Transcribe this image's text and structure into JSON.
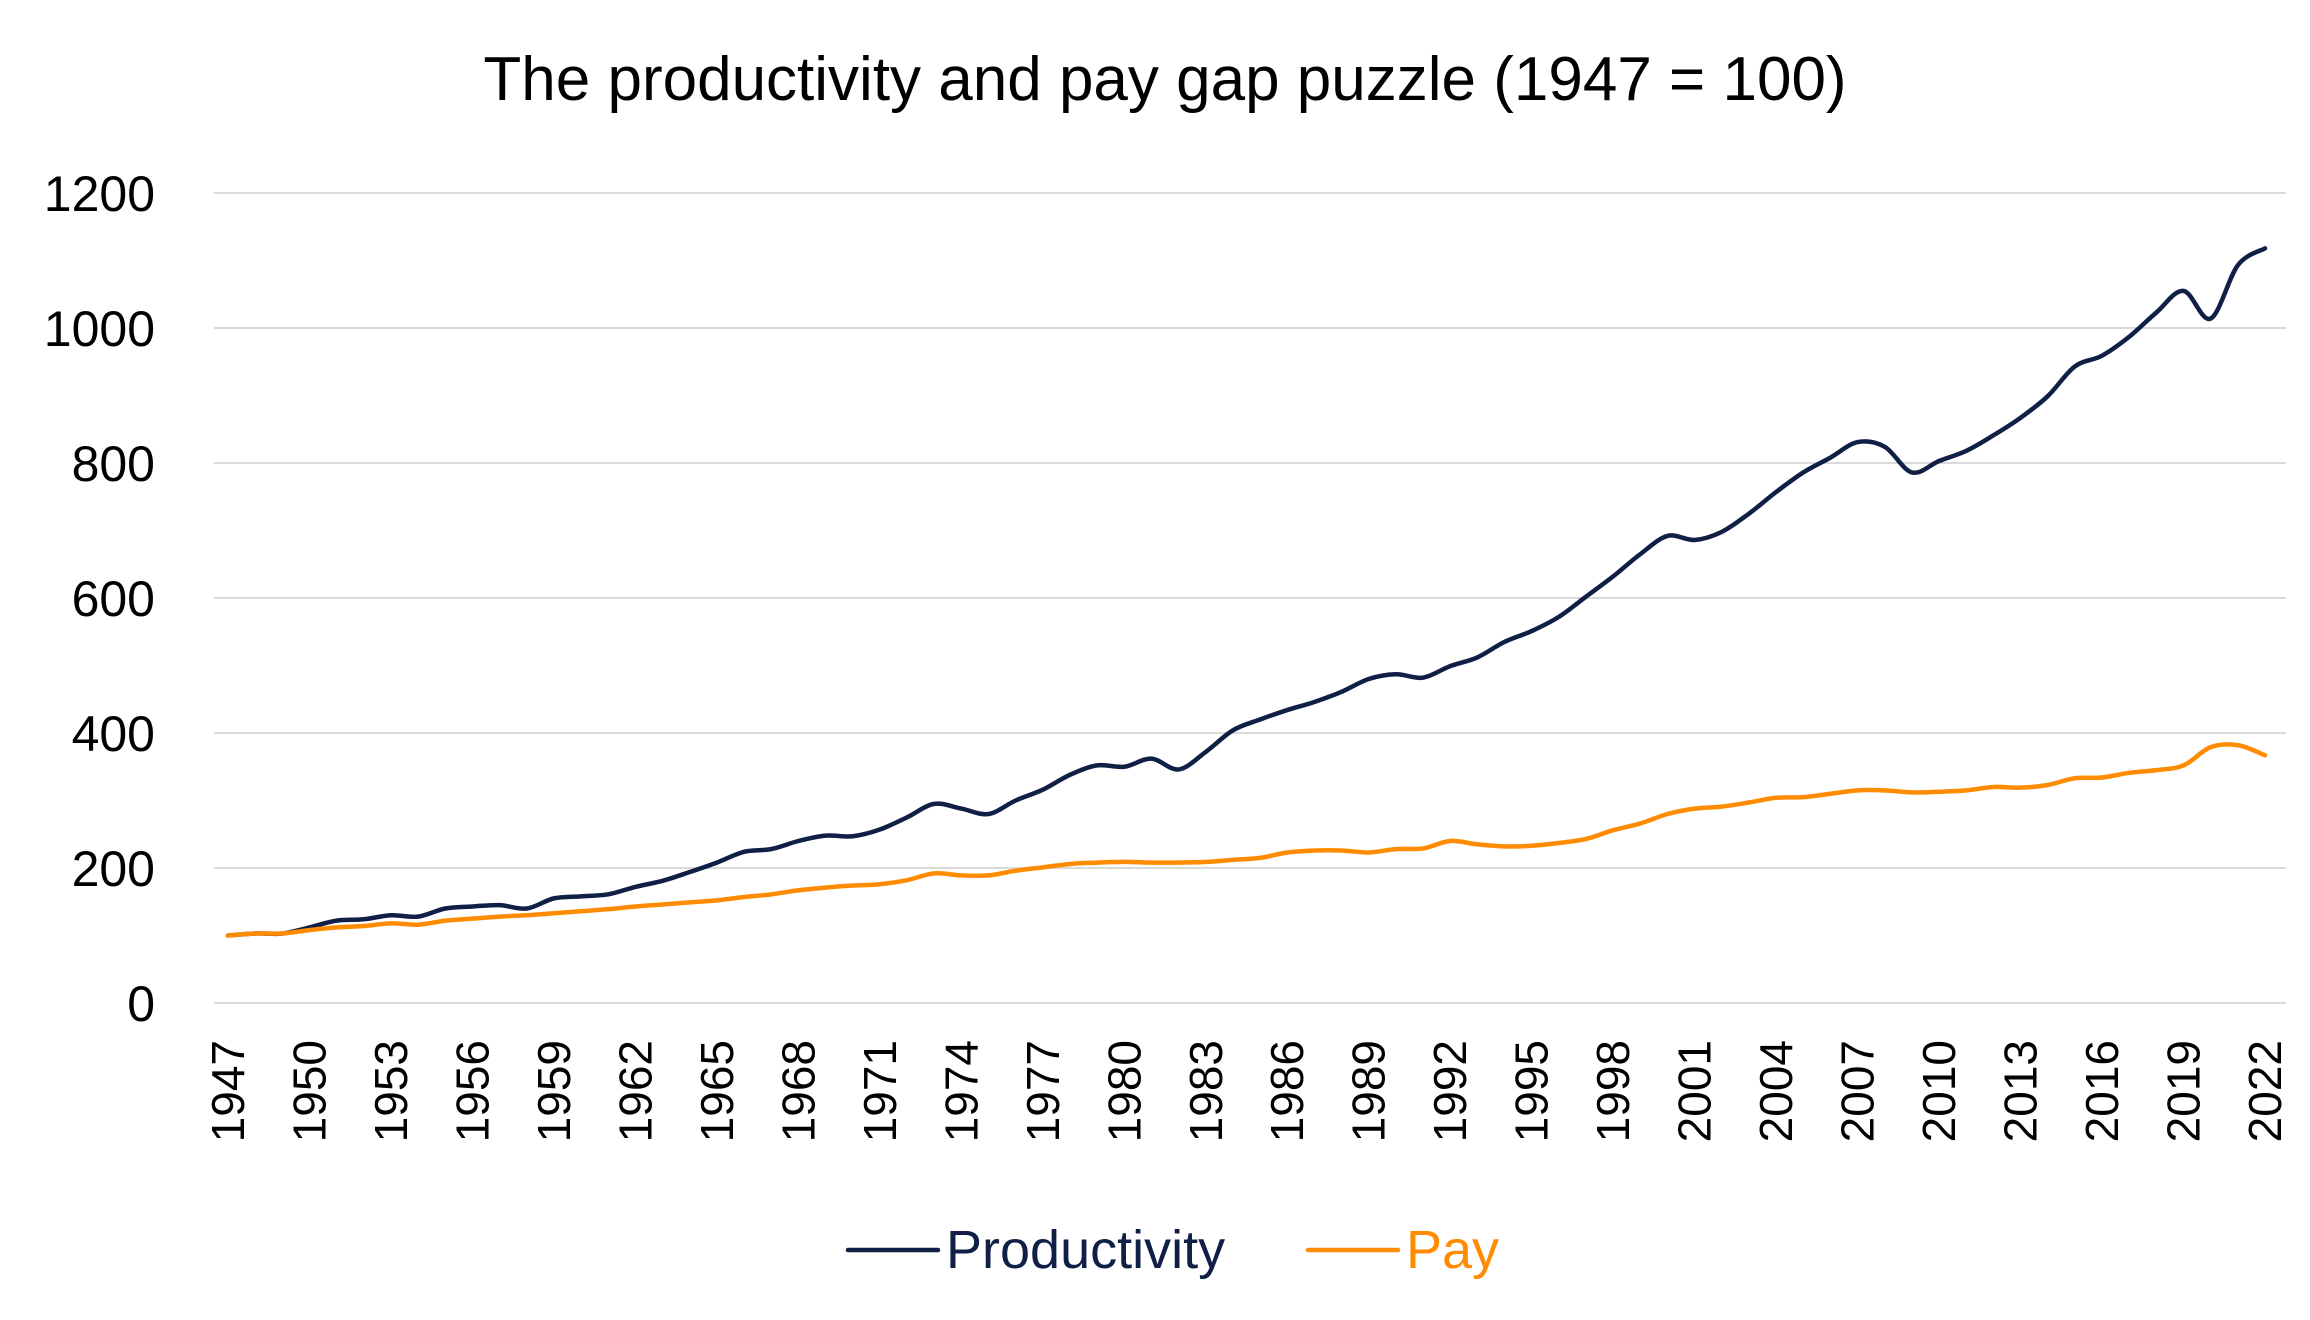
{
  "chart_data": {
    "type": "line",
    "title": "The productivity and pay gap puzzle (1947 = 100)",
    "xlabel": "",
    "ylabel": "",
    "ylim": [
      0,
      1200
    ],
    "yticks": [
      0,
      200,
      400,
      600,
      800,
      1000,
      1200
    ],
    "xlim": [
      1947,
      2022
    ],
    "xtick_labels": [
      "1947",
      "1950",
      "1953",
      "1956",
      "1959",
      "1962",
      "1965",
      "1968",
      "1971",
      "1974",
      "1977",
      "1980",
      "1983",
      "1986",
      "1989",
      "1992",
      "1995",
      "1998",
      "2001",
      "2004",
      "2007",
      "2010",
      "2013",
      "2016",
      "2019",
      "2022"
    ],
    "grid": true,
    "legend_position": "bottom",
    "x": [
      1947,
      1948,
      1949,
      1950,
      1951,
      1952,
      1953,
      1954,
      1955,
      1956,
      1957,
      1958,
      1959,
      1960,
      1961,
      1962,
      1963,
      1964,
      1965,
      1966,
      1967,
      1968,
      1969,
      1970,
      1971,
      1972,
      1973,
      1974,
      1975,
      1976,
      1977,
      1978,
      1979,
      1980,
      1981,
      1982,
      1983,
      1984,
      1985,
      1986,
      1987,
      1988,
      1989,
      1990,
      1991,
      1992,
      1993,
      1994,
      1995,
      1996,
      1997,
      1998,
      1999,
      2000,
      2001,
      2002,
      2003,
      2004,
      2005,
      2006,
      2007,
      2008,
      2009,
      2010,
      2011,
      2012,
      2013,
      2014,
      2015,
      2016,
      2017,
      2018,
      2019,
      2020,
      2021,
      2022
    ],
    "series": [
      {
        "name": "Productivity",
        "color": "#0f1f45",
        "values": [
          100,
          103,
          103,
          112,
          122,
          124,
          130,
          128,
          140,
          143,
          145,
          140,
          155,
          158,
          161,
          172,
          181,
          194,
          208,
          224,
          228,
          240,
          248,
          247,
          257,
          275,
          295,
          288,
          280,
          300,
          316,
          338,
          352,
          350,
          362,
          346,
          372,
          404,
          420,
          434,
          446,
          461,
          480,
          487,
          482,
          499,
          512,
          535,
          551,
          572,
          602,
          632,
          665,
          692,
          686,
          698,
          725,
          757,
          786,
          808,
          831,
          824,
          786,
          803,
          818,
          841,
          867,
          899,
          943,
          959,
          987,
          1023,
          1055,
          1014,
          1093,
          1118
        ]
      },
      {
        "name": "Pay",
        "color": "#ff8c00",
        "values": [
          100,
          103,
          103,
          108,
          112,
          114,
          118,
          116,
          122,
          125,
          128,
          130,
          133,
          136,
          139,
          143,
          146,
          149,
          152,
          157,
          161,
          167,
          171,
          174,
          176,
          182,
          192,
          189,
          189,
          196,
          201,
          206,
          208,
          209,
          208,
          208,
          209,
          212,
          215,
          223,
          226,
          226,
          223,
          228,
          229,
          240,
          235,
          232,
          233,
          237,
          243,
          256,
          266,
          280,
          288,
          291,
          297,
          304,
          305,
          310,
          315,
          315,
          312,
          313,
          315,
          320,
          319,
          323,
          333,
          334,
          341,
          345,
          352,
          379,
          382,
          367
        ]
      }
    ]
  }
}
